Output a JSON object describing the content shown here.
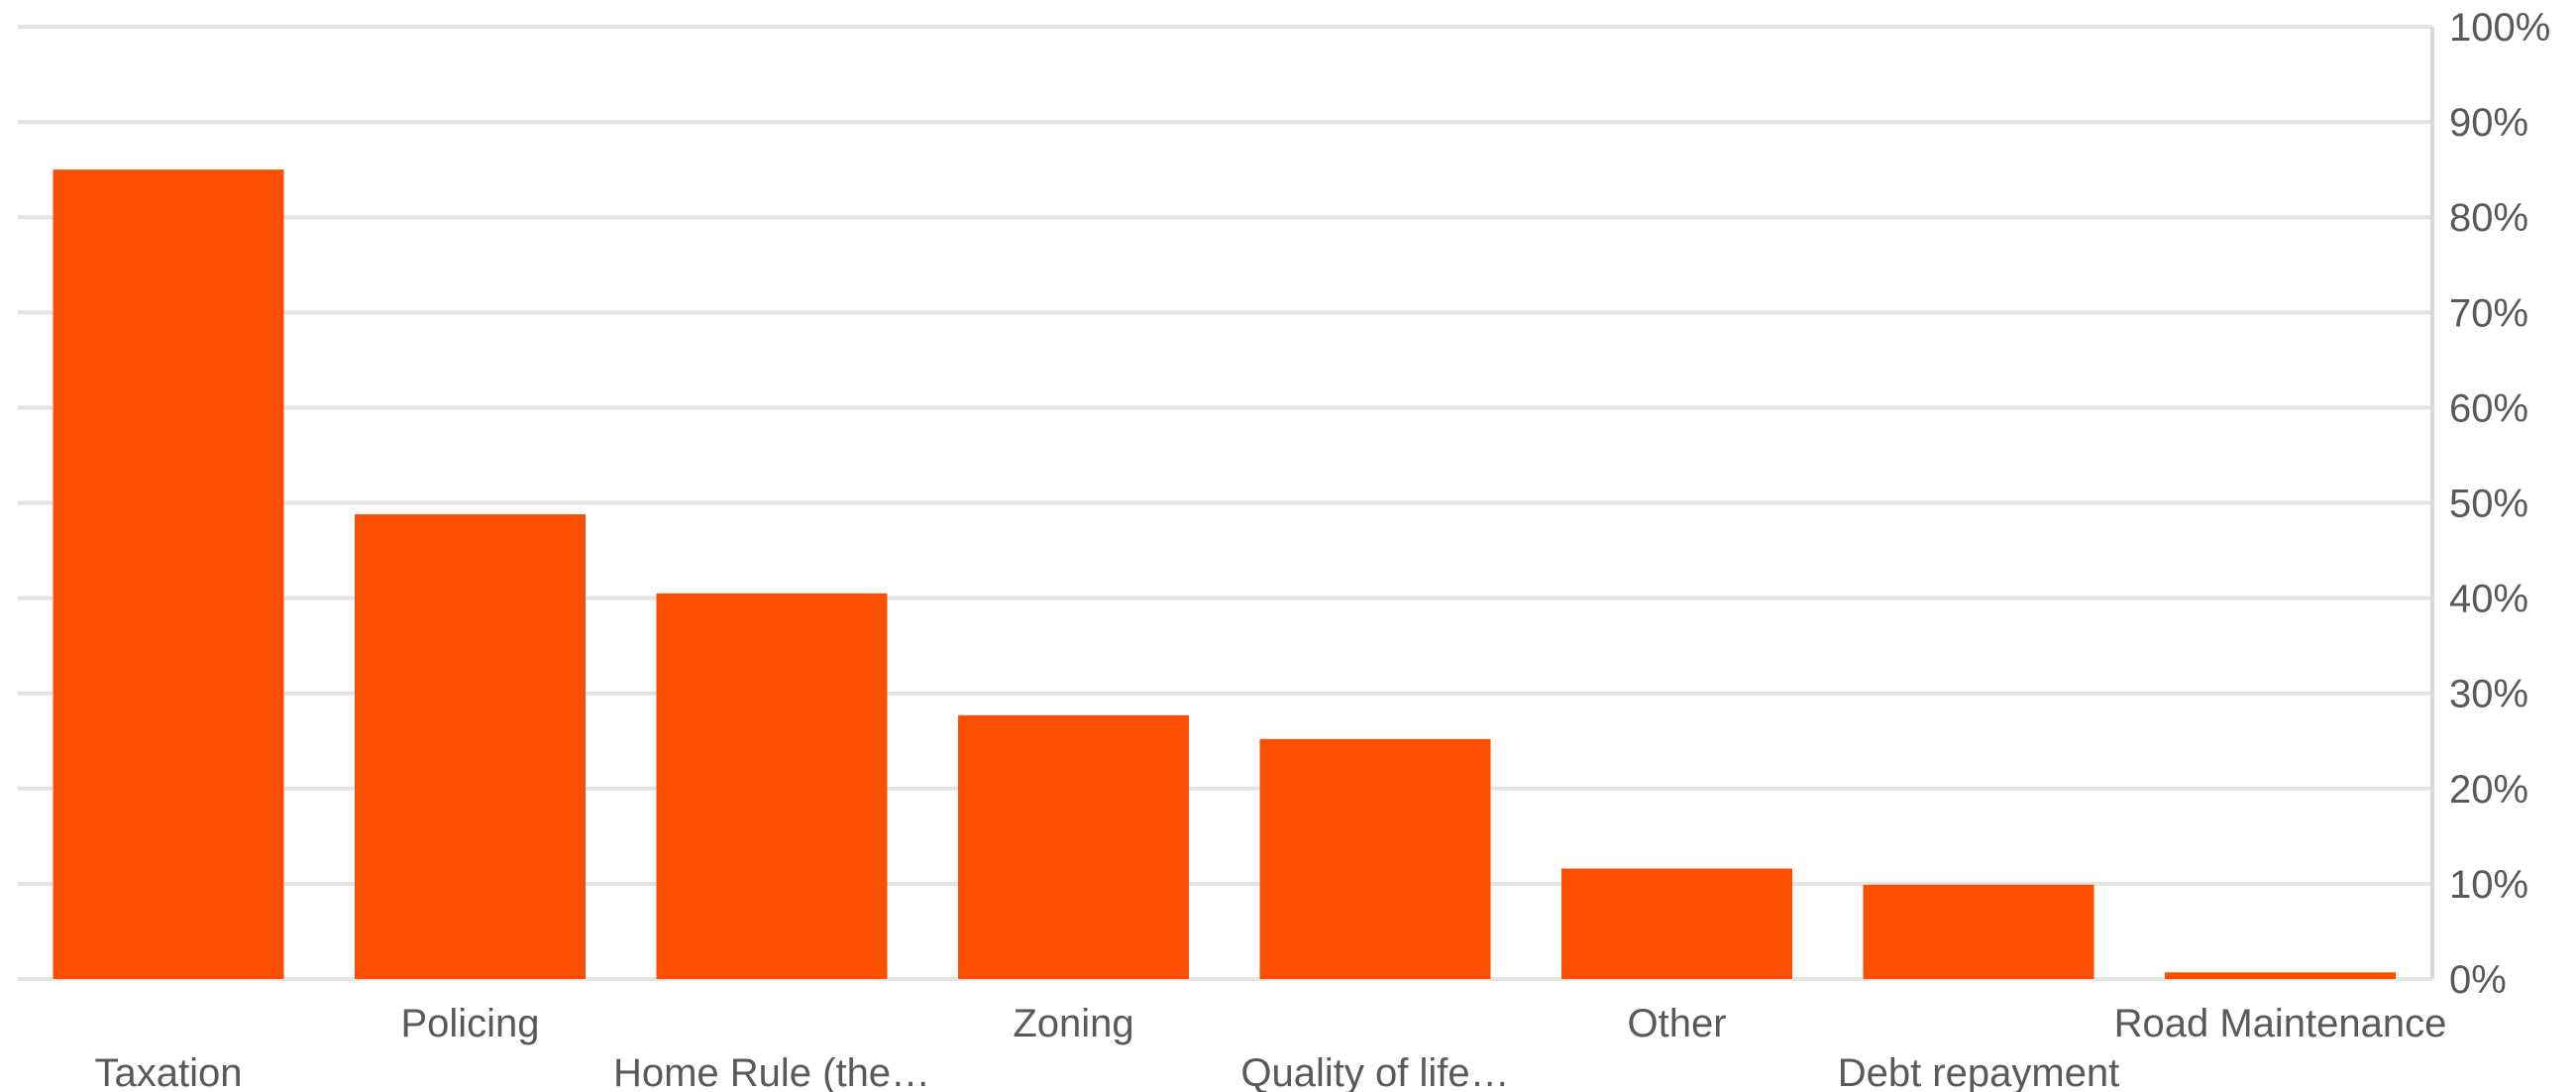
{
  "chart_data": {
    "type": "bar",
    "title": "",
    "xlabel": "",
    "ylabel": "",
    "categories": [
      "Taxation",
      "Policing",
      "Home Rule (the…",
      "Zoning",
      "Quality of life…",
      "Other",
      "Debt repayment",
      "Road Maintenance"
    ],
    "values": [
      85,
      48.8,
      40.5,
      27.7,
      25.2,
      11.6,
      9.9,
      0.7
    ],
    "ylim": [
      0,
      100
    ],
    "yticks": [
      "0%",
      "10%",
      "20%",
      "30%",
      "40%",
      "50%",
      "60%",
      "70%",
      "80%",
      "90%",
      "100%"
    ],
    "y_axis_position": "right",
    "grid": true,
    "bar_color": "#fc5000"
  }
}
